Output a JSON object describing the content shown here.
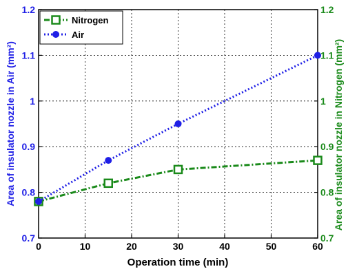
{
  "chart_data": {
    "type": "line",
    "x": [
      0,
      15,
      30,
      60
    ],
    "series": [
      {
        "name": "Nitrogen",
        "values": [
          0.78,
          0.82,
          0.85,
          0.87
        ],
        "color": "#1a8a1a",
        "axis": "right",
        "marker": "square",
        "line_style": "dash-dot"
      },
      {
        "name": "Air",
        "values": [
          0.78,
          0.87,
          0.95,
          1.1
        ],
        "color": "#1f1fe6",
        "axis": "left",
        "marker": "circle",
        "line_style": "dotted"
      }
    ],
    "xlabel": "Operation time (min)",
    "ylabel_left": "Area of insulator nozzle in Air (mm²)",
    "ylabel_right": "Area of insulator nozzle in Nitrogen (mm²)",
    "xlim": [
      0,
      60
    ],
    "ylim": [
      0.7,
      1.2
    ],
    "xticks": [
      "0",
      "10",
      "20",
      "30",
      "40",
      "50",
      "60"
    ],
    "yticks_left": [
      "0.7",
      "0.8",
      "0.9",
      "1",
      "1.1",
      "1.2"
    ],
    "yticks_right": [
      "0.7",
      "0.8",
      "0.9",
      "1",
      "1.1",
      "1.2"
    ],
    "grid": true,
    "legend_position": "top-left",
    "axis_colors": {
      "left": "#1f1fe6",
      "right": "#1a8a1a",
      "x": "#000000"
    }
  }
}
